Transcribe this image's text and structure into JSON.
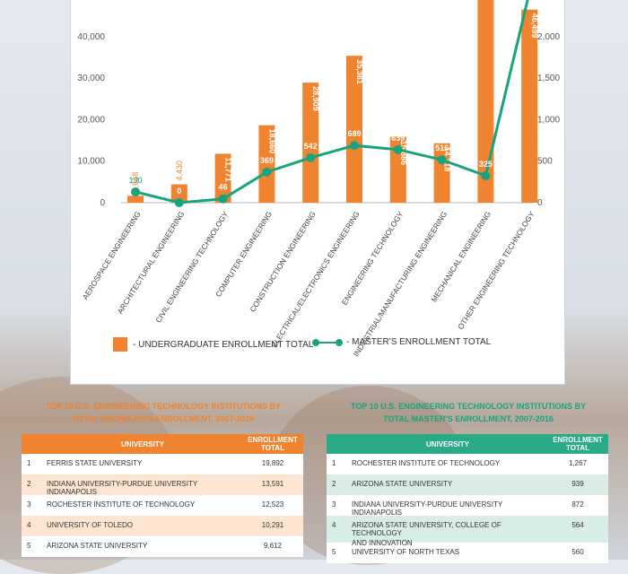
{
  "colors": {
    "undergrad": "#f0832f",
    "masters": "#17a37e"
  },
  "chart_data": {
    "type": "bar+line",
    "categories": [
      "AEROSPACE ENGINEERING",
      "ARCHITECTURAL ENGINEERING",
      "CIVIL ENGINEERING TECHNOLOGY",
      "COMPUTER ENGINEERING",
      "CONSTRUCTION ENGINEERING",
      "ELECTRICAL/ELECTRONICS ENGINEERING",
      "ENGINEERING TECHNOLOGY",
      "INDUSTRIAL/MANUFACTURING ENGINEERING",
      "MECHANICAL ENGINEERING",
      "OTHER ENGINEERING TECHNOLOGY"
    ],
    "series": [
      {
        "name": "- UNDERGRADUATE ENROLLMENT TOTAL",
        "axis": "left",
        "values": [
          1658,
          4430,
          11771,
          18660,
          28909,
          35381,
          15886,
          14318,
          55000,
          46499
        ],
        "labels": [
          "1,658",
          "4,430",
          "11,771",
          "18,660",
          "28,909",
          "35,381",
          "15,886",
          "14,318",
          "",
          "46,499"
        ]
      },
      {
        "name": "- MASTER'S ENROLLMENT TOTAL",
        "axis": "right",
        "values": [
          130,
          0,
          46,
          369,
          542,
          689,
          639,
          516,
          325,
          2700
        ],
        "labels": [
          "130",
          "0",
          "46",
          "369",
          "542",
          "689",
          "639",
          "516",
          "325",
          ""
        ]
      }
    ],
    "y_left": {
      "ticks": [
        0,
        10000,
        20000,
        30000,
        40000
      ],
      "tick_labels": [
        "0",
        "10,000",
        "20,000",
        "30,000",
        "40,000"
      ]
    },
    "y_right": {
      "ticks": [
        0,
        500,
        1000,
        1500,
        2000
      ],
      "tick_labels": [
        "0",
        "500",
        "1,000",
        "1,500",
        "2,000"
      ]
    },
    "legend_position": "bottom"
  },
  "tables": {
    "bachelors": {
      "title_line1": "TOP 10 U.S. ENGINEERING TECHNOLOGY INSTITUTIONS BY",
      "title_line2": "TOTAL BACHELOR'S ENROLLMENT, 2007-2016",
      "col_university": "UNIVERSITY",
      "col_total": "ENROLLMENT TOTAL",
      "rows": [
        {
          "rank": "1",
          "name": "FERRIS STATE UNIVERSITY",
          "total": "19,892"
        },
        {
          "rank": "2",
          "name": "INDIANA UNIVERSITY-PURDUE UNIVERSITY INDIANAPOLIS",
          "total": "13,591"
        },
        {
          "rank": "3",
          "name": "ROCHESTER INSTITUTE OF TECHNOLOGY",
          "total": "12,523"
        },
        {
          "rank": "4",
          "name": "UNIVERSITY OF TOLEDO",
          "total": "10,291"
        },
        {
          "rank": "5",
          "name": "ARIZONA STATE UNIVERSITY",
          "total": "9,612"
        }
      ]
    },
    "masters": {
      "title_line1": "TOP 10 U.S. ENGINEERING TECHNOLOGY INSTITUTIONS BY",
      "title_line2": "TOTAL MASTER'S ENROLLMENT, 2007-2016",
      "col_university": "UNIVERSITY",
      "col_total": "ENROLLMENT TOTAL",
      "rows": [
        {
          "rank": "1",
          "name": "ROCHESTER INSTITUTE OF TECHNOLOGY",
          "name2": "",
          "total": "1,267"
        },
        {
          "rank": "2",
          "name": "ARIZONA STATE UNIVERSITY",
          "name2": "",
          "total": "939"
        },
        {
          "rank": "3",
          "name": "INDIANA UNIVERSITY-PURDUE UNIVERSITY INDIANAPOLIS",
          "name2": "",
          "total": "872"
        },
        {
          "rank": "4",
          "name": "ARIZONA STATE UNIVERSITY, COLLEGE OF TECHNOLOGY",
          "name2": "AND INNOVATION",
          "total": "564"
        },
        {
          "rank": "5",
          "name": "UNIVERSITY OF NORTH TEXAS",
          "name2": "",
          "total": "560"
        }
      ]
    }
  }
}
